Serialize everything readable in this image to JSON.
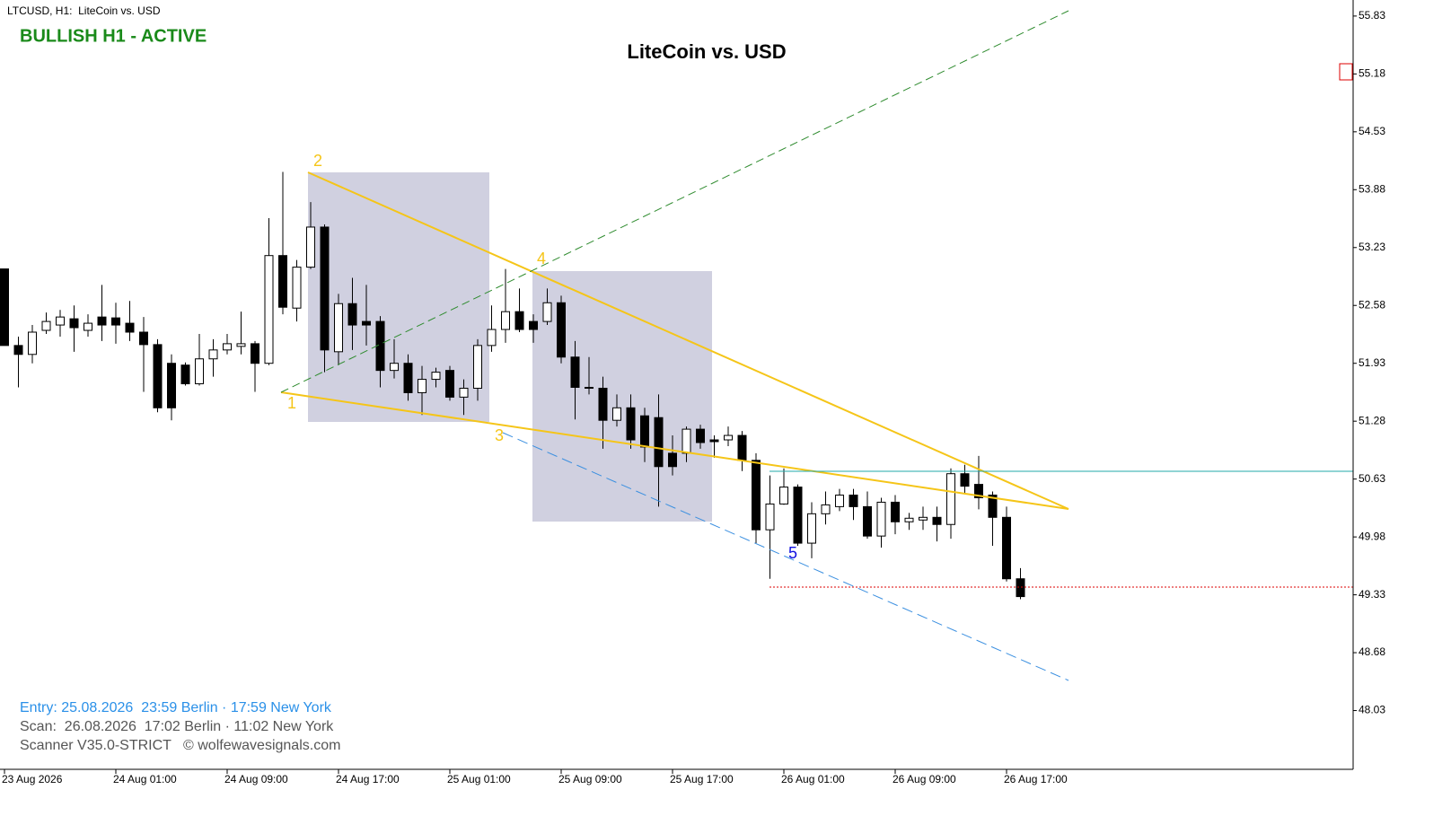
{
  "header": "LTCUSD, H1:  LiteCoin vs. USD",
  "status": "BULLISH H1 - ACTIVE",
  "info": [
    "Entry: 25.08.2026  23:59 Berlin · 17:59 New York",
    "Scan:  26.08.2026  17:02 Berlin · 11:02 New York",
    "Scanner V35.0-STRICT   © wolfewavesignals.com"
  ],
  "wave_labels": [
    "1",
    "2",
    "3",
    "4",
    "5"
  ],
  "chart_data": {
    "type": "candlestick",
    "title": "LiteCoin vs. USD",
    "categories": [
      "23 Aug 2026",
      null,
      null,
      null,
      null,
      null,
      null,
      null,
      "24 Aug 01:00",
      null,
      null,
      null,
      null,
      null,
      null,
      null,
      "24 Aug 09:00",
      null,
      null,
      null,
      null,
      null,
      null,
      null,
      "24 Aug 17:00",
      null,
      null,
      null,
      null,
      null,
      null,
      null,
      "25 Aug 01:00",
      null,
      null,
      null,
      null,
      null,
      null,
      null,
      "25 Aug 09:00",
      null,
      null,
      null,
      null,
      null,
      null,
      null,
      "25 Aug 17:00",
      null,
      null,
      null,
      null,
      null,
      null,
      null,
      "26 Aug 01:00",
      null,
      null,
      null,
      null,
      null,
      null,
      null,
      "26 Aug 09:00",
      null,
      null,
      null,
      null,
      null,
      null,
      null,
      "26 Aug 17:00",
      null
    ],
    "open": [
      52.99,
      52.13,
      52.03,
      52.3,
      52.36,
      52.43,
      52.3,
      52.45,
      52.44,
      52.38,
      52.28,
      52.14,
      51.93,
      51.91,
      51.7,
      51.98,
      52.08,
      52.12,
      52.15,
      51.93,
      53.14,
      52.55,
      53.01,
      53.46,
      52.06,
      52.6,
      52.4,
      52.4,
      51.85,
      51.93,
      51.6,
      51.75,
      51.85,
      51.55,
      51.65,
      52.13,
      52.31,
      52.51,
      52.4,
      52.4,
      52.61,
      52.0,
      51.66,
      51.65,
      51.29,
      51.43,
      51.34,
      51.32,
      50.92,
      50.92,
      51.19,
      51.07,
      51.07,
      51.12,
      50.84,
      50.06,
      50.35,
      50.54,
      49.91,
      50.24,
      50.32,
      50.45,
      50.32,
      49.99,
      50.37,
      50.15,
      50.17,
      50.2,
      50.12,
      50.69,
      50.57,
      50.45,
      50.2,
      49.51
    ],
    "high": [
      52.99,
      52.23,
      52.36,
      52.5,
      52.53,
      52.58,
      52.48,
      52.81,
      52.61,
      52.63,
      52.45,
      52.2,
      52.03,
      51.94,
      52.26,
      52.2,
      52.26,
      52.51,
      52.18,
      53.56,
      54.08,
      53.09,
      53.74,
      53.49,
      52.71,
      52.89,
      52.81,
      52.46,
      52.2,
      52.03,
      51.9,
      51.88,
      51.9,
      51.75,
      52.2,
      52.58,
      52.99,
      52.77,
      52.48,
      52.77,
      52.69,
      52.18,
      52.0,
      51.78,
      51.58,
      51.58,
      51.43,
      51.58,
      51.12,
      51.22,
      51.24,
      51.12,
      51.22,
      51.17,
      50.92,
      50.67,
      50.75,
      50.57,
      50.37,
      50.49,
      50.52,
      50.52,
      50.49,
      50.42,
      50.45,
      50.25,
      50.32,
      50.32,
      50.75,
      50.79,
      50.89,
      50.49,
      50.32,
      49.63
    ],
    "low": [
      52.13,
      51.66,
      51.93,
      52.26,
      52.23,
      52.06,
      52.23,
      52.18,
      52.15,
      52.18,
      51.61,
      51.38,
      51.29,
      51.68,
      51.68,
      51.78,
      52.03,
      52.03,
      51.61,
      51.91,
      52.48,
      52.4,
      52.99,
      51.83,
      51.91,
      52.08,
      52.13,
      51.66,
      51.76,
      51.51,
      51.35,
      51.66,
      51.51,
      51.35,
      51.51,
      52.06,
      52.16,
      52.28,
      52.16,
      52.36,
      51.93,
      51.3,
      51.58,
      50.97,
      51.22,
      50.97,
      50.82,
      50.32,
      50.67,
      50.82,
      50.97,
      50.87,
      51.0,
      50.72,
      49.91,
      49.51,
      50.34,
      49.88,
      49.74,
      50.12,
      50.27,
      50.17,
      49.96,
      49.86,
      50.01,
      50.06,
      50.06,
      49.93,
      49.96,
      50.47,
      50.29,
      49.88,
      49.48,
      49.28
    ],
    "close": [
      52.13,
      52.03,
      52.28,
      52.4,
      52.45,
      52.33,
      52.38,
      52.36,
      52.36,
      52.28,
      52.14,
      51.43,
      51.43,
      51.7,
      51.98,
      52.08,
      52.15,
      52.15,
      51.93,
      53.14,
      52.56,
      53.01,
      53.46,
      52.08,
      52.6,
      52.36,
      52.36,
      51.85,
      51.93,
      51.6,
      51.75,
      51.83,
      51.55,
      51.65,
      52.13,
      52.31,
      52.51,
      52.31,
      52.31,
      52.61,
      52.0,
      51.66,
      51.65,
      51.29,
      51.43,
      51.07,
      50.99,
      50.77,
      50.77,
      51.19,
      51.04,
      51.05,
      51.12,
      50.84,
      50.06,
      50.35,
      50.54,
      49.91,
      50.24,
      50.34,
      50.45,
      50.32,
      49.99,
      50.37,
      50.15,
      50.19,
      50.2,
      50.12,
      50.69,
      50.55,
      50.42,
      50.2,
      49.51,
      49.31
    ],
    "up_color": "#ffffff",
    "down_color": "#000000",
    "ylim": [
      47.37,
      55.97
    ],
    "yticks": [
      55.83,
      55.18,
      54.53,
      53.88,
      53.23,
      52.58,
      51.93,
      51.28,
      50.63,
      49.98,
      49.33,
      48.68,
      48.03
    ]
  }
}
